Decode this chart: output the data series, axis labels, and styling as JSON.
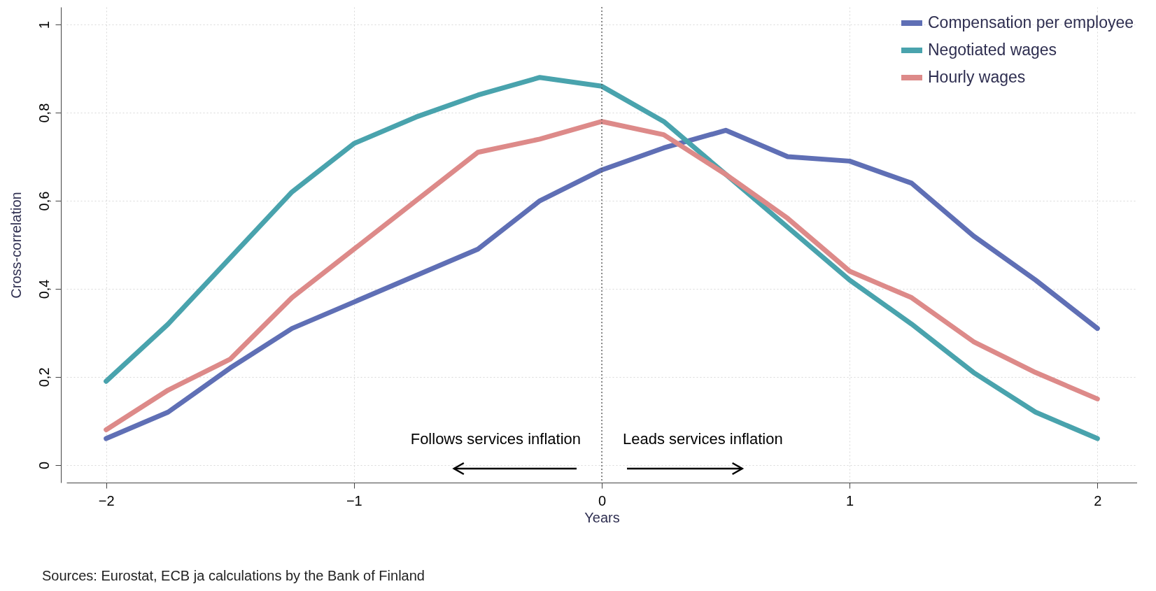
{
  "chart_data": {
    "type": "line",
    "xlabel": "Years",
    "ylabel": "Cross-correlation",
    "x": [
      -2,
      -1.75,
      -1.5,
      -1.25,
      -1,
      -0.75,
      -0.5,
      -0.25,
      0,
      0.25,
      0.5,
      0.75,
      1,
      1.25,
      1.5,
      1.75,
      2
    ],
    "series": [
      {
        "name": "Compensation per employee",
        "color": "#5f6fb5",
        "values": [
          0.06,
          0.12,
          0.22,
          0.31,
          0.37,
          0.43,
          0.49,
          0.6,
          0.67,
          0.72,
          0.76,
          0.7,
          0.69,
          0.64,
          0.52,
          0.42,
          0.31
        ]
      },
      {
        "name": "Negotiated wages",
        "color": "#49a3ad",
        "values": [
          0.19,
          0.32,
          0.47,
          0.62,
          0.73,
          0.79,
          0.84,
          0.88,
          0.86,
          0.78,
          0.66,
          0.54,
          0.42,
          0.32,
          0.21,
          0.12,
          0.06
        ]
      },
      {
        "name": "Hourly wages",
        "color": "#dd8a89",
        "values": [
          0.08,
          0.17,
          0.24,
          0.38,
          0.49,
          0.6,
          0.71,
          0.74,
          0.78,
          0.75,
          0.66,
          0.56,
          0.44,
          0.38,
          0.28,
          0.21,
          0.15
        ]
      }
    ],
    "xlim": [
      -2.16,
      2.16
    ],
    "ylim": [
      -0.04,
      1.04
    ],
    "xticks": [
      {
        "value": -2,
        "label": "−2"
      },
      {
        "value": -1,
        "label": "−1"
      },
      0,
      1,
      2
    ],
    "yticks": [
      0,
      {
        "value": 0.2,
        "label": "0,2"
      },
      {
        "value": 0.4,
        "label": "0,4"
      },
      {
        "value": 0.6,
        "label": "0,6"
      },
      {
        "value": 0.8,
        "label": "0,8"
      },
      1
    ],
    "grid": true,
    "legend": "top right",
    "ref_lines": [
      {
        "axis": "x",
        "value": 0,
        "color": "#555555",
        "line_style": "dotted"
      }
    ],
    "annotations": [
      "Follows services inflation",
      "Leads services inflation",
      "Sources: Eurostat, ECB ja calculations by the Bank of Finland"
    ]
  }
}
